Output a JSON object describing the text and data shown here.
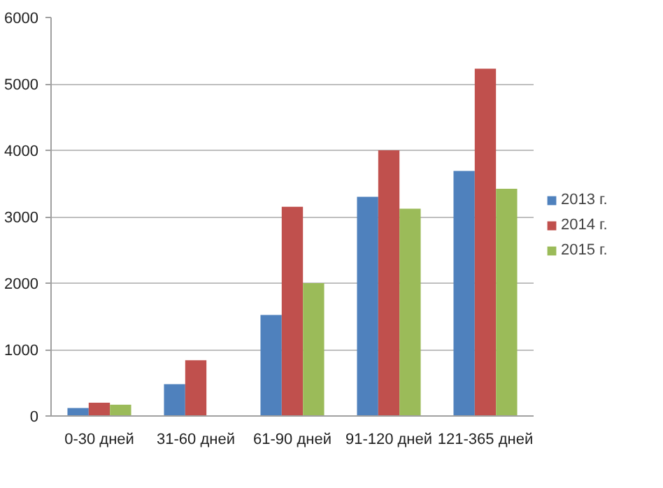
{
  "chart_data": {
    "type": "bar",
    "categories": [
      "0-30 дней",
      "31-60 дней",
      "61-90 дней",
      "91-120 дней",
      "121-365 дней"
    ],
    "series": [
      {
        "name": "2013 г.",
        "color": "#4f81bd",
        "values": [
          120,
          480,
          1520,
          3300,
          3690
        ]
      },
      {
        "name": "2014 г.",
        "color": "#c0504d",
        "values": [
          200,
          840,
          3150,
          4000,
          5230
        ]
      },
      {
        "name": "2015 г.",
        "color": "#9bbb59",
        "values": [
          170,
          null,
          2000,
          3120,
          3420
        ]
      }
    ],
    "ylim": [
      0,
      6000
    ],
    "yticks": [
      0,
      1000,
      2000,
      3000,
      4000,
      5000,
      6000
    ],
    "grid": "y",
    "legend": "right"
  }
}
